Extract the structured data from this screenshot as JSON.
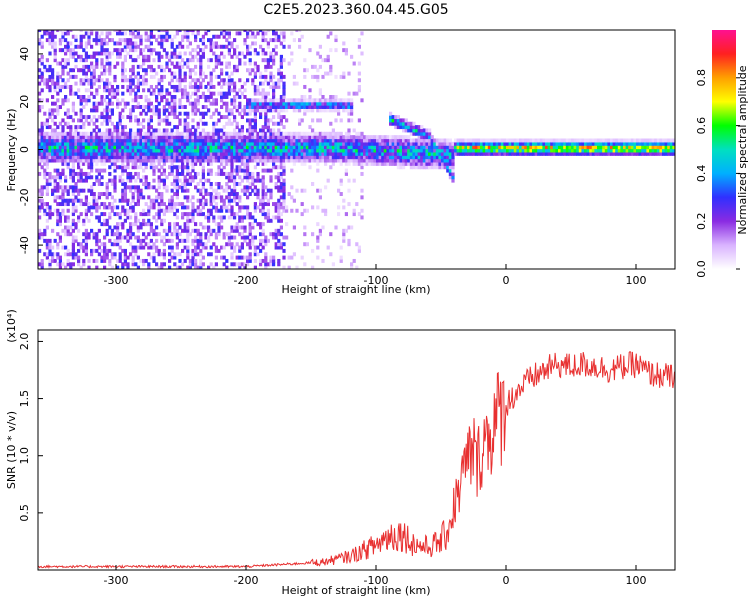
{
  "title": "C2E5.2023.360.04.45.G05",
  "chart_data": [
    {
      "type": "heatmap",
      "xlabel": "Height of straight line (km)",
      "ylabel": "Frequency (Hz)",
      "xlim": [
        -360,
        130
      ],
      "ylim": [
        -50,
        50
      ],
      "x_ticks": [
        -300,
        -200,
        -100,
        0,
        100
      ],
      "y_ticks": [
        -40,
        -20,
        0,
        20,
        40
      ],
      "colorbar": {
        "label": "Normalized spectral amplitude",
        "range": [
          0,
          1
        ],
        "ticks": [
          0.0,
          0.2,
          0.4,
          0.6,
          0.8
        ],
        "colormap": [
          "#ffffff",
          "#d9b3ff",
          "#8a2be2",
          "#3030ff",
          "#00b0ff",
          "#00e0c0",
          "#00ff00",
          "#ffff00",
          "#ffa000",
          "#ff2020",
          "#ff1090"
        ]
      },
      "features": [
        {
          "name": "main-band",
          "x_range": [
            -360,
            130
          ],
          "frequency": 0
        },
        {
          "name": "upper-band",
          "x_range": [
            -200,
            -120
          ],
          "frequency": 18
        },
        {
          "name": "descending-branch",
          "x": [
            -90,
            -60,
            -42
          ],
          "frequency": [
            12,
            5,
            -12
          ]
        }
      ],
      "grid": false
    },
    {
      "type": "line",
      "xlabel": "Height of straight line (km)",
      "ylabel": "SNR (10 * v/v)",
      "y_multiplier": "(x10⁴)",
      "xlim": [
        -360,
        130
      ],
      "ylim": [
        0,
        2.1
      ],
      "x_ticks": [
        -300,
        -200,
        -100,
        0,
        100
      ],
      "y_ticks": [
        0.5,
        1.0,
        1.5,
        2.0
      ],
      "line_color": "#e83030",
      "x": [
        -360,
        -300,
        -250,
        -200,
        -170,
        -140,
        -120,
        -100,
        -90,
        -80,
        -70,
        -60,
        -50,
        -45,
        -40,
        -35,
        -30,
        -25,
        -22,
        -20,
        -15,
        -10,
        -5,
        0,
        10,
        20,
        30,
        40,
        50,
        60,
        70,
        80,
        90,
        100,
        110,
        120,
        130
      ],
      "values": [
        0.03,
        0.03,
        0.03,
        0.03,
        0.05,
        0.07,
        0.12,
        0.22,
        0.3,
        0.32,
        0.22,
        0.2,
        0.25,
        0.35,
        0.55,
        0.75,
        0.95,
        1.05,
        0.9,
        1.05,
        1.15,
        1.25,
        1.35,
        1.45,
        1.58,
        1.68,
        1.75,
        1.8,
        1.78,
        1.8,
        1.78,
        1.75,
        1.78,
        1.8,
        1.72,
        1.7,
        1.68
      ],
      "grid": false
    }
  ]
}
